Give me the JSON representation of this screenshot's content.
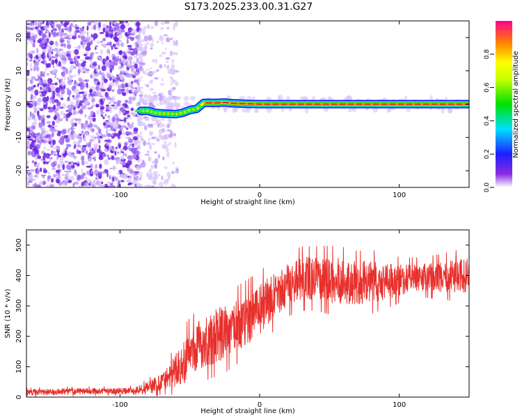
{
  "title": "S173.2025.233.00.31.G27",
  "colors": {
    "line": "#e8302c",
    "track_core": "#e02020",
    "axis": "#000000",
    "scatter": [
      "#6a1fe0",
      "#8a4ff0",
      "#b48cf6",
      "#d8c4fb"
    ]
  },
  "chart_data": [
    {
      "type": "heatmap",
      "name": "spectrogram",
      "xlabel": "Height of straight line (km)",
      "ylabel": "Frequency (Hz)",
      "xlim": [
        -167,
        150
      ],
      "ylim": [
        -25,
        25
      ],
      "xticks": [
        -100,
        0,
        100
      ],
      "xtick_labels": [
        "-100",
        "0",
        "100"
      ],
      "yticks": [
        -20,
        -10,
        0,
        10,
        20
      ],
      "ytick_labels": [
        "-20",
        "-10",
        "0",
        "10",
        "20"
      ],
      "grid": false,
      "noise_region_x": [
        -167,
        -77
      ],
      "track": {
        "x": [
          -85,
          -80,
          -75,
          -70,
          -65,
          -60,
          -55,
          -50,
          -45,
          -40,
          -35,
          -30,
          -25,
          -20,
          -10,
          0,
          20,
          50,
          100,
          150
        ],
        "y": [
          -2.0,
          -2.0,
          -2.6,
          -2.8,
          -2.9,
          -3.0,
          -2.6,
          -1.8,
          -1.4,
          0.4,
          0.4,
          0.4,
          0.5,
          0.3,
          0.1,
          0.0,
          0.0,
          0.0,
          0.0,
          0.0
        ],
        "amplitude": [
          0.35,
          0.45,
          0.55,
          0.6,
          0.65,
          0.7,
          0.7,
          0.72,
          0.78,
          0.85,
          0.9,
          0.92,
          0.93,
          0.95,
          0.95,
          0.95,
          0.96,
          0.96,
          0.96,
          0.96
        ]
      },
      "colorbar": {
        "label": "Normalized spectral amplitude",
        "range": [
          0.0,
          1.0
        ],
        "ticks": [
          0.0,
          0.2,
          0.4,
          0.6,
          0.8
        ],
        "tick_labels": [
          "0.0",
          "0.2",
          "0.4",
          "0.6",
          "0.8"
        ]
      }
    },
    {
      "type": "line",
      "name": "snr",
      "xlabel": "Height of straight line (km)",
      "ylabel": "SNR (10 * v/v)",
      "xlim": [
        -167,
        150
      ],
      "ylim": [
        0,
        550
      ],
      "xticks": [
        -100,
        0,
        100
      ],
      "xtick_labels": [
        "-100",
        "0",
        "100"
      ],
      "yticks": [
        0,
        100,
        200,
        300,
        400,
        500
      ],
      "ytick_labels": [
        "0",
        "100",
        "200",
        "300",
        "400",
        "500"
      ],
      "grid": false,
      "series": [
        {
          "name": "SNR",
          "x": [
            -167,
            -150,
            -130,
            -110,
            -95,
            -90,
            -85,
            -80,
            -75,
            -70,
            -65,
            -60,
            -55,
            -50,
            -45,
            -40,
            -35,
            -30,
            -25,
            -20,
            -15,
            -10,
            -5,
            0,
            5,
            10,
            15,
            20,
            30,
            40,
            50,
            60,
            70,
            80,
            90,
            100,
            110,
            120,
            130,
            140,
            150
          ],
          "mean": [
            15,
            17,
            19,
            20,
            20,
            20,
            25,
            30,
            40,
            55,
            70,
            90,
            115,
            140,
            165,
            180,
            190,
            205,
            215,
            225,
            240,
            255,
            270,
            290,
            310,
            330,
            350,
            370,
            390,
            390,
            385,
            380,
            375,
            380,
            380,
            385,
            390,
            395,
            395,
            400,
            400
          ],
          "spread": [
            10,
            10,
            10,
            10,
            10,
            12,
            15,
            20,
            25,
            30,
            40,
            55,
            75,
            80,
            80,
            85,
            85,
            90,
            90,
            85,
            85,
            85,
            85,
            85,
            80,
            75,
            75,
            70,
            70,
            70,
            75,
            75,
            70,
            70,
            60,
            50,
            45,
            45,
            50,
            55,
            55
          ]
        }
      ]
    }
  ]
}
